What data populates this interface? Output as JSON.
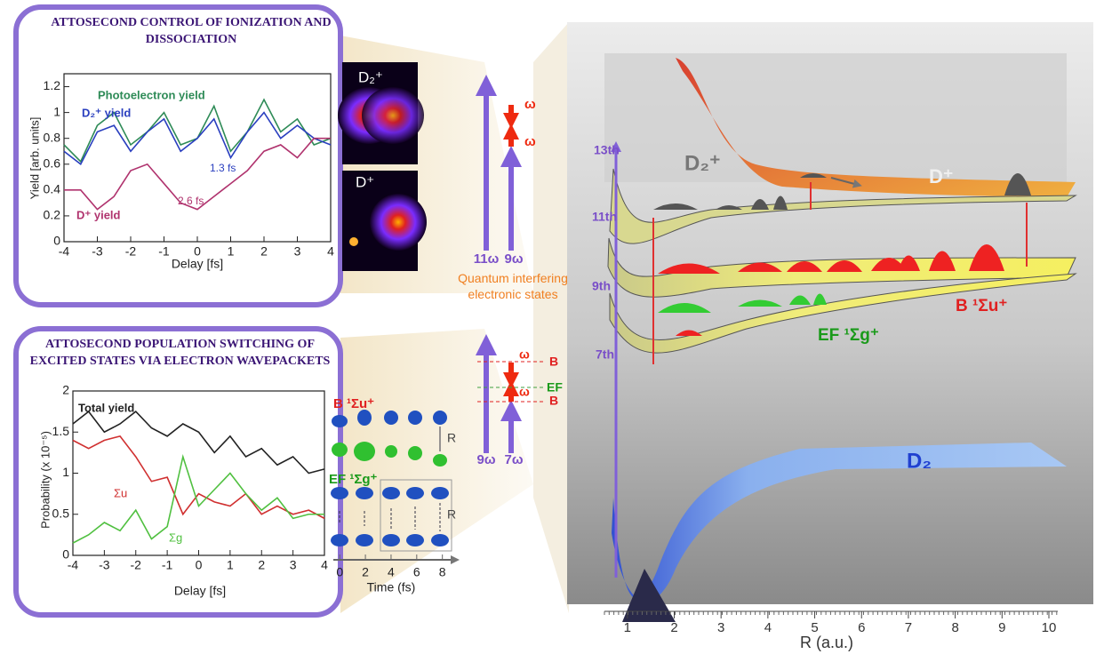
{
  "chart_data": [
    {
      "type": "line",
      "title": "ATTOSECOND CONTROL OF IONIZATION AND DISSOCIATION",
      "x_label": "Delay [fs]",
      "y_label": "Yield [arb. units]",
      "x": [
        -4,
        -3.5,
        -3,
        -2.5,
        -2,
        -1.5,
        -1,
        -0.5,
        0,
        0.5,
        1,
        1.5,
        2,
        2.5,
        3,
        3.5,
        4
      ],
      "xlim": [
        -4,
        4
      ],
      "xticks": [
        -4,
        -3,
        -2,
        -1,
        0,
        1,
        2,
        3,
        4
      ],
      "ylim": [
        0,
        1.3
      ],
      "yticks": [
        0,
        0.2,
        0.4,
        0.6,
        0.8,
        1,
        1.2
      ],
      "grid": false,
      "series": [
        {
          "name": "Photoelectron yield",
          "color": "#2e8b57",
          "values": [
            0.75,
            0.62,
            0.9,
            1.0,
            0.75,
            0.85,
            1.0,
            0.75,
            0.8,
            1.05,
            0.7,
            0.85,
            1.1,
            0.85,
            0.95,
            0.75,
            0.8
          ]
        },
        {
          "name": "D₂⁺ yield",
          "color": "#2a3fbf",
          "values": [
            0.7,
            0.6,
            0.85,
            0.9,
            0.7,
            0.85,
            0.95,
            0.7,
            0.8,
            0.95,
            0.65,
            0.85,
            1.0,
            0.8,
            0.9,
            0.8,
            0.75
          ]
        },
        {
          "name": "D⁺ yield",
          "color": "#b0336e",
          "values": [
            0.4,
            0.4,
            0.25,
            0.35,
            0.55,
            0.6,
            0.45,
            0.3,
            0.25,
            0.35,
            0.45,
            0.55,
            0.7,
            0.75,
            0.65,
            0.8,
            0.8
          ]
        }
      ],
      "annotations": [
        "1.3 fs",
        "2.6 fs"
      ],
      "images": [
        "D₂⁺",
        "D⁺"
      ]
    },
    {
      "type": "line",
      "title": "ATTOSECOND POPULATION SWITCHING OF EXCITED STATES VIA ELECTRON WAVEPACKETS",
      "x_label": "Delay [fs]",
      "y_label": "Probability (x 10⁻⁵)",
      "x": [
        -4,
        -3.5,
        -3,
        -2.5,
        -2,
        -1.5,
        -1,
        -0.5,
        0,
        0.5,
        1,
        1.5,
        2,
        2.5,
        3,
        3.5,
        4
      ],
      "xlim": [
        -4,
        4
      ],
      "xticks": [
        -4,
        -3,
        -2,
        -1,
        0,
        1,
        2,
        3,
        4
      ],
      "ylim": [
        0,
        2
      ],
      "yticks": [
        0,
        0.5,
        1,
        1.5,
        2
      ],
      "grid": false,
      "series": [
        {
          "name": "Total yield",
          "color": "#222222",
          "values": [
            1.6,
            1.75,
            1.5,
            1.6,
            1.75,
            1.55,
            1.45,
            1.6,
            1.5,
            1.25,
            1.45,
            1.2,
            1.3,
            1.1,
            1.2,
            1.0,
            1.05
          ]
        },
        {
          "name": "Σu",
          "color": "#d03030",
          "values": [
            1.4,
            1.3,
            1.4,
            1.45,
            1.2,
            0.9,
            0.95,
            0.5,
            0.75,
            0.65,
            0.6,
            0.75,
            0.5,
            0.6,
            0.5,
            0.55,
            0.45
          ]
        },
        {
          "name": "Σg",
          "color": "#50c040",
          "values": [
            0.15,
            0.25,
            0.4,
            0.3,
            0.55,
            0.2,
            0.35,
            1.2,
            0.6,
            0.8,
            1.0,
            0.75,
            0.55,
            0.7,
            0.45,
            0.5,
            0.5
          ]
        }
      ],
      "inset": {
        "states": [
          "B ¹Σu⁺",
          "EF ¹Σg⁺"
        ],
        "coordinate": [
          "R",
          "R"
        ],
        "x_label": "Time (fs)",
        "xlim": [
          -0.5,
          9.2
        ],
        "xticks": [
          0,
          2,
          4,
          6,
          8
        ]
      }
    },
    {
      "type": "potential",
      "x_label": "R (a.u.)",
      "xlim": [
        0.51,
        10.19
      ],
      "xticks": [
        1,
        2,
        3,
        4,
        5,
        6,
        7,
        8,
        9,
        10
      ],
      "harmonics": [
        "13th",
        "11th",
        "9th",
        "7th"
      ],
      "states": [
        "D₂⁺",
        "D⁺",
        "B ¹Σu⁺",
        "EF ¹Σg⁺",
        "D₂"
      ]
    }
  ],
  "scheme": {
    "upper": {
      "photons": [
        "11ω",
        "9ω"
      ],
      "field": [
        "ω",
        "ω"
      ]
    },
    "caption": "Quantum interfering electronic states",
    "lower": {
      "levels": [
        "B",
        "EF",
        "B"
      ],
      "field": [
        "ω",
        "ω"
      ],
      "photons": [
        "9ω",
        "7ω"
      ]
    }
  }
}
